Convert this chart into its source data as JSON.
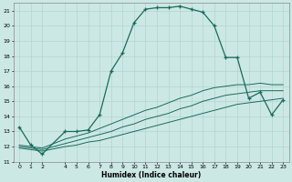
{
  "xlabel": "Humidex (Indice chaleur)",
  "bg_color": "#cce8e5",
  "grid_color": "#b0d4d0",
  "line_color": "#1a6b5a",
  "xlim": [
    -0.5,
    23.5
  ],
  "ylim": [
    11,
    21.5
  ],
  "xticks": [
    0,
    1,
    2,
    4,
    5,
    6,
    7,
    8,
    9,
    10,
    11,
    12,
    13,
    14,
    15,
    16,
    17,
    18,
    19,
    20,
    21,
    22,
    23
  ],
  "yticks": [
    11,
    12,
    13,
    14,
    15,
    16,
    17,
    18,
    19,
    20,
    21
  ],
  "curve1_x": [
    0,
    1,
    2,
    4,
    5,
    6,
    7,
    8,
    9,
    10,
    11,
    12,
    13,
    14,
    15,
    16,
    17,
    18,
    19,
    20,
    21,
    22,
    23
  ],
  "curve1_y": [
    13.3,
    12.1,
    11.5,
    13.0,
    13.0,
    13.1,
    14.1,
    17.0,
    18.2,
    20.2,
    21.1,
    21.2,
    21.2,
    21.3,
    21.1,
    20.9,
    20.0,
    17.9,
    17.9,
    15.2,
    15.6,
    14.1,
    15.1
  ],
  "curve2_x": [
    0,
    1,
    2,
    4,
    5,
    6,
    7,
    8,
    9,
    10,
    11,
    12,
    13,
    14,
    15,
    16,
    17,
    18,
    19,
    20,
    21,
    22,
    23
  ],
  "curve2_y": [
    11.9,
    11.8,
    11.7,
    12.0,
    12.1,
    12.3,
    12.4,
    12.6,
    12.8,
    13.0,
    13.2,
    13.4,
    13.6,
    13.8,
    14.0,
    14.2,
    14.4,
    14.6,
    14.8,
    14.9,
    15.0,
    15.1,
    15.2
  ],
  "curve3_x": [
    0,
    1,
    2,
    4,
    5,
    6,
    7,
    8,
    9,
    10,
    11,
    12,
    13,
    14,
    15,
    16,
    17,
    18,
    19,
    20,
    21,
    22,
    23
  ],
  "curve3_y": [
    12.0,
    11.9,
    11.8,
    12.2,
    12.4,
    12.6,
    12.8,
    13.0,
    13.3,
    13.5,
    13.8,
    14.0,
    14.2,
    14.5,
    14.7,
    15.0,
    15.2,
    15.4,
    15.5,
    15.6,
    15.7,
    15.7,
    15.7
  ],
  "curve4_x": [
    0,
    1,
    2,
    4,
    5,
    6,
    7,
    8,
    9,
    10,
    11,
    12,
    13,
    14,
    15,
    16,
    17,
    18,
    19,
    20,
    21,
    22,
    23
  ],
  "curve4_y": [
    12.1,
    12.0,
    11.9,
    12.5,
    12.7,
    12.9,
    13.2,
    13.5,
    13.8,
    14.1,
    14.4,
    14.6,
    14.9,
    15.2,
    15.4,
    15.7,
    15.9,
    16.0,
    16.1,
    16.1,
    16.2,
    16.1,
    16.1
  ]
}
